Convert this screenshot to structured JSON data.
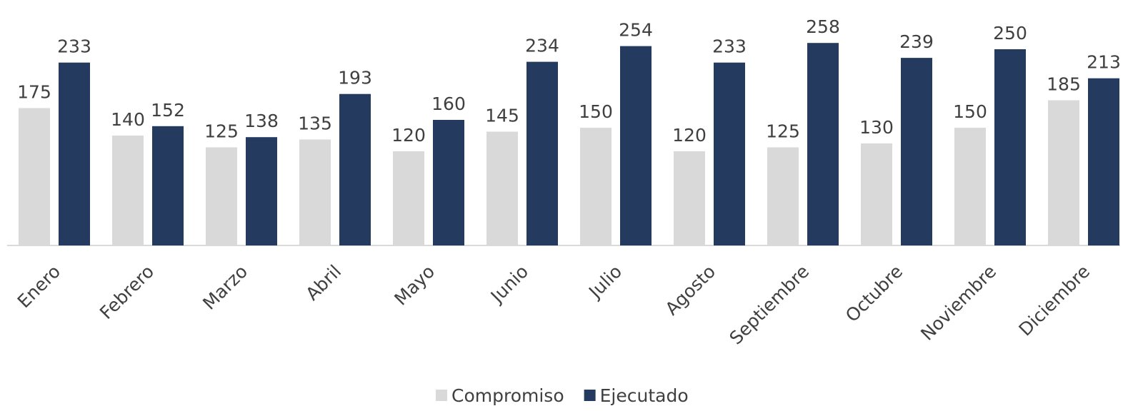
{
  "chart_data": {
    "type": "bar",
    "categories": [
      "Enero",
      "Febrero",
      "Marzo",
      "Abril",
      "Mayo",
      "Junio",
      "Julio",
      "Agosto",
      "Septiembre",
      "Octubre",
      "Noviembre",
      "Diciembre"
    ],
    "series": [
      {
        "name": "Compromiso",
        "color": "#d9d9d9",
        "values": [
          175,
          140,
          125,
          135,
          120,
          145,
          150,
          120,
          125,
          130,
          150,
          185
        ]
      },
      {
        "name": "Ejecutado",
        "color": "#243a5e",
        "values": [
          233,
          152,
          138,
          193,
          160,
          234,
          254,
          233,
          258,
          239,
          250,
          213
        ]
      }
    ],
    "ylim": [
      0,
      300
    ]
  }
}
